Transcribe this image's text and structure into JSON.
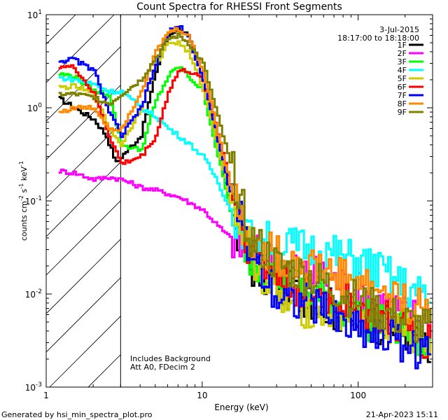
{
  "chart_data": {
    "type": "line",
    "title": "Count Spectra for RHESSI Front Segments",
    "xlabel": "Energy (keV)",
    "ylabel_base": "counts cm",
    "ylabel_sup1": "-2",
    "ylabel_mid": " s",
    "ylabel_sup2": "-1",
    "ylabel_unit": " keV",
    "ylabel_sup3": "-1",
    "xscale": "log",
    "yscale": "log",
    "xlim": [
      1,
      300
    ],
    "ylim": [
      0.001,
      10
    ],
    "x_ticks": [
      {
        "value": 1,
        "label": "1"
      },
      {
        "value": 10,
        "label": "10"
      },
      {
        "value": 100,
        "label": "100"
      }
    ],
    "y_ticks": [
      {
        "value": 10,
        "base": "10",
        "exp": "1"
      },
      {
        "value": 1,
        "base": "10",
        "exp": "0"
      },
      {
        "value": 0.1,
        "base": "10",
        "exp": "-1"
      },
      {
        "value": 0.01,
        "base": "10",
        "exp": "-2"
      },
      {
        "value": 0.001,
        "base": "10",
        "exp": "-3"
      }
    ],
    "excluded_region_end": 3,
    "date": "3-Jul-2015",
    "time_range": "18:17:00 to 18:18:00",
    "annotations": [
      "Includes Background",
      "Att A0, FDecim 2"
    ],
    "footer_left": "Generated by hsi_min_spectra_plot.pro",
    "footer_right": "21-Apr-2023 15:11",
    "legend_position": "top-right",
    "series": [
      {
        "name": "1F",
        "color": "#000000",
        "points": [
          [
            1.2,
            1.25
          ],
          [
            1.5,
            1.0
          ],
          [
            2.0,
            0.75
          ],
          [
            2.4,
            0.5
          ],
          [
            2.8,
            0.25
          ],
          [
            3.0,
            0.3
          ],
          [
            4.0,
            0.5
          ],
          [
            5.0,
            2.5
          ],
          [
            6.0,
            6.0
          ],
          [
            7.0,
            7.3
          ],
          [
            8.0,
            6.0
          ],
          [
            10,
            2.0
          ],
          [
            12,
            0.5
          ],
          [
            15,
            0.08
          ],
          [
            20,
            0.02
          ],
          [
            30,
            0.012
          ],
          [
            50,
            0.009
          ],
          [
            80,
            0.006
          ],
          [
            120,
            0.005
          ],
          [
            200,
            0.004
          ],
          [
            290,
            0.002
          ]
        ]
      },
      {
        "name": "2F",
        "color": "#ff00ff",
        "points": [
          [
            1.2,
            0.21
          ],
          [
            1.5,
            0.2
          ],
          [
            2.0,
            0.17
          ],
          [
            2.5,
            0.18
          ],
          [
            3.0,
            0.17
          ],
          [
            4.0,
            0.14
          ],
          [
            5.0,
            0.13
          ],
          [
            7.0,
            0.11
          ],
          [
            10,
            0.08
          ],
          [
            13,
            0.05
          ],
          [
            18,
            0.03
          ],
          [
            25,
            0.025
          ],
          [
            40,
            0.018
          ],
          [
            60,
            0.015
          ],
          [
            80,
            0.013
          ],
          [
            120,
            0.009
          ],
          [
            200,
            0.006
          ],
          [
            290,
            0.0055
          ]
        ]
      },
      {
        "name": "3F",
        "color": "#00ff00",
        "points": [
          [
            1.2,
            2.3
          ],
          [
            1.5,
            2.2
          ],
          [
            2.0,
            1.5
          ],
          [
            2.5,
            1.4
          ],
          [
            3.0,
            0.4
          ],
          [
            4.0,
            0.35
          ],
          [
            5.0,
            1.2
          ],
          [
            6.0,
            2.2
          ],
          [
            7.0,
            2.8
          ],
          [
            8.0,
            2.2
          ],
          [
            10,
            1.5
          ],
          [
            12,
            0.4
          ],
          [
            15,
            0.08
          ],
          [
            20,
            0.025
          ],
          [
            30,
            0.015
          ],
          [
            50,
            0.01
          ],
          [
            80,
            0.007
          ],
          [
            120,
            0.005
          ],
          [
            200,
            0.004
          ],
          [
            290,
            0.0025
          ]
        ]
      },
      {
        "name": "4F",
        "color": "#00ffff",
        "points": [
          [
            1.2,
            2.1
          ],
          [
            1.5,
            2.0
          ],
          [
            2.0,
            1.8
          ],
          [
            2.5,
            1.5
          ],
          [
            3.0,
            1.5
          ],
          [
            4.0,
            1.0
          ],
          [
            5.0,
            0.8
          ],
          [
            6.0,
            0.6
          ],
          [
            8.0,
            0.42
          ],
          [
            10,
            0.3
          ],
          [
            12,
            0.18
          ],
          [
            15,
            0.08
          ],
          [
            20,
            0.04
          ],
          [
            30,
            0.035
          ],
          [
            50,
            0.03
          ],
          [
            80,
            0.025
          ],
          [
            120,
            0.02
          ],
          [
            200,
            0.012
          ],
          [
            290,
            0.008
          ]
        ]
      },
      {
        "name": "5F",
        "color": "#cccc00",
        "points": [
          [
            1.2,
            1.65
          ],
          [
            1.5,
            1.7
          ],
          [
            2.0,
            1.4
          ],
          [
            2.5,
            0.6
          ],
          [
            3.0,
            0.4
          ],
          [
            4.0,
            1.0
          ],
          [
            5.0,
            3.0
          ],
          [
            6.0,
            5.0
          ],
          [
            7.0,
            5.0
          ],
          [
            8.0,
            4.0
          ],
          [
            10,
            1.6
          ],
          [
            12,
            0.5
          ],
          [
            15,
            0.1
          ],
          [
            20,
            0.03
          ],
          [
            30,
            0.008
          ],
          [
            50,
            0.007
          ],
          [
            80,
            0.006
          ],
          [
            120,
            0.005
          ],
          [
            200,
            0.004
          ],
          [
            290,
            0.003
          ]
        ]
      },
      {
        "name": "6F",
        "color": "#ff0000",
        "points": [
          [
            1.2,
            2.8
          ],
          [
            1.5,
            2.7
          ],
          [
            2.0,
            1.4
          ],
          [
            2.5,
            0.5
          ],
          [
            3.0,
            0.25
          ],
          [
            4.0,
            0.3
          ],
          [
            5.0,
            0.5
          ],
          [
            6.0,
            1.5
          ],
          [
            7.0,
            2.5
          ],
          [
            8.0,
            2.5
          ],
          [
            10,
            2.0
          ],
          [
            12,
            0.7
          ],
          [
            15,
            0.15
          ],
          [
            20,
            0.03
          ],
          [
            30,
            0.015
          ],
          [
            50,
            0.01
          ],
          [
            80,
            0.008
          ],
          [
            120,
            0.006
          ],
          [
            200,
            0.004
          ],
          [
            290,
            0.003
          ]
        ]
      },
      {
        "name": "7F",
        "color": "#0000ff",
        "points": [
          [
            1.2,
            3.2
          ],
          [
            1.5,
            3.3
          ],
          [
            2.0,
            2.5
          ],
          [
            2.5,
            0.9
          ],
          [
            3.0,
            0.5
          ],
          [
            4.0,
            1.0
          ],
          [
            5.0,
            3.0
          ],
          [
            6.0,
            6.5
          ],
          [
            7.0,
            7.5
          ],
          [
            8.0,
            6.0
          ],
          [
            10,
            2.0
          ],
          [
            12,
            0.6
          ],
          [
            15,
            0.12
          ],
          [
            20,
            0.03
          ],
          [
            30,
            0.01
          ],
          [
            50,
            0.008
          ],
          [
            80,
            0.005
          ],
          [
            120,
            0.004
          ],
          [
            200,
            0.003
          ],
          [
            290,
            0.002
          ]
        ]
      },
      {
        "name": "8F",
        "color": "#ff8800",
        "points": [
          [
            1.2,
            0.9
          ],
          [
            1.5,
            1.0
          ],
          [
            2.0,
            1.0
          ],
          [
            2.5,
            0.6
          ],
          [
            3.0,
            0.6
          ],
          [
            4.0,
            1.5
          ],
          [
            5.0,
            4.0
          ],
          [
            6.0,
            6.5
          ],
          [
            7.0,
            7.0
          ],
          [
            8.0,
            6.0
          ],
          [
            10,
            2.5
          ],
          [
            12,
            0.7
          ],
          [
            15,
            0.15
          ],
          [
            20,
            0.04
          ],
          [
            30,
            0.025
          ],
          [
            50,
            0.02
          ],
          [
            80,
            0.015
          ],
          [
            120,
            0.012
          ],
          [
            200,
            0.008
          ],
          [
            290,
            0.006
          ]
        ]
      },
      {
        "name": "9F",
        "color": "#808000",
        "points": [
          [
            1.2,
            1.4
          ],
          [
            1.5,
            1.4
          ],
          [
            2.0,
            1.3
          ],
          [
            2.5,
            1.1
          ],
          [
            3.0,
            1.4
          ],
          [
            4.0,
            2.0
          ],
          [
            5.0,
            3.5
          ],
          [
            6.0,
            5.5
          ],
          [
            7.0,
            6.0
          ],
          [
            8.0,
            5.0
          ],
          [
            10,
            3.0
          ],
          [
            12,
            1.0
          ],
          [
            15,
            0.25
          ],
          [
            20,
            0.04
          ],
          [
            30,
            0.02
          ],
          [
            50,
            0.015
          ],
          [
            80,
            0.01
          ],
          [
            120,
            0.007
          ],
          [
            200,
            0.005
          ],
          [
            290,
            0.004
          ]
        ]
      }
    ]
  }
}
